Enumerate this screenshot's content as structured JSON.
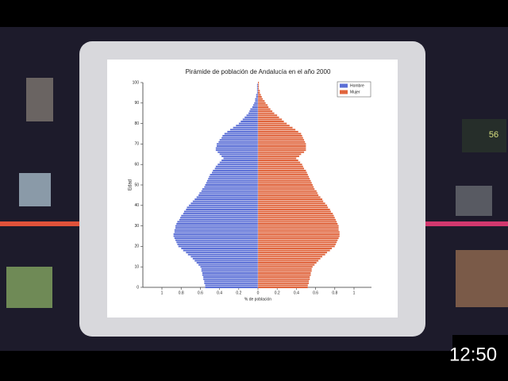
{
  "chart_data": {
    "type": "pyramid",
    "title": "Pirámide de población de Andalucía en el año 2000",
    "x_label": "% de población",
    "y_label": "Edad",
    "y": [
      0,
      1,
      2,
      3,
      4,
      5,
      6,
      7,
      8,
      9,
      10,
      11,
      12,
      13,
      14,
      15,
      16,
      17,
      18,
      19,
      20,
      21,
      22,
      23,
      24,
      25,
      26,
      27,
      28,
      29,
      30,
      31,
      32,
      33,
      34,
      35,
      36,
      37,
      38,
      39,
      40,
      41,
      42,
      43,
      44,
      45,
      46,
      47,
      48,
      49,
      50,
      51,
      52,
      53,
      54,
      55,
      56,
      57,
      58,
      59,
      60,
      61,
      62,
      63,
      64,
      65,
      66,
      67,
      68,
      69,
      70,
      71,
      72,
      73,
      74,
      75,
      76,
      77,
      78,
      79,
      80,
      81,
      82,
      83,
      84,
      85,
      86,
      87,
      88,
      89,
      90,
      91,
      92,
      93,
      94,
      95,
      96,
      97,
      98,
      99,
      100
    ],
    "series": [
      {
        "name": "Hombre",
        "color": "#5b6fd6",
        "values": [
          -0.55,
          -0.55,
          -0.56,
          -0.56,
          -0.57,
          -0.57,
          -0.58,
          -0.58,
          -0.59,
          -0.59,
          -0.6,
          -0.62,
          -0.64,
          -0.66,
          -0.68,
          -0.7,
          -0.73,
          -0.75,
          -0.78,
          -0.8,
          -0.83,
          -0.84,
          -0.85,
          -0.86,
          -0.87,
          -0.88,
          -0.88,
          -0.87,
          -0.87,
          -0.86,
          -0.86,
          -0.85,
          -0.84,
          -0.82,
          -0.81,
          -0.8,
          -0.78,
          -0.77,
          -0.75,
          -0.74,
          -0.72,
          -0.7,
          -0.68,
          -0.66,
          -0.64,
          -0.62,
          -0.61,
          -0.59,
          -0.58,
          -0.56,
          -0.55,
          -0.54,
          -0.53,
          -0.52,
          -0.51,
          -0.5,
          -0.48,
          -0.47,
          -0.45,
          -0.44,
          -0.42,
          -0.4,
          -0.38,
          -0.36,
          -0.38,
          -0.4,
          -0.42,
          -0.44,
          -0.44,
          -0.43,
          -0.43,
          -0.41,
          -0.4,
          -0.38,
          -0.37,
          -0.35,
          -0.32,
          -0.29,
          -0.26,
          -0.23,
          -0.2,
          -0.18,
          -0.16,
          -0.14,
          -0.12,
          -0.1,
          -0.09,
          -0.08,
          -0.06,
          -0.05,
          -0.04,
          -0.03,
          -0.03,
          -0.02,
          -0.02,
          -0.01,
          -0.01,
          -0.01,
          -0.01,
          -0.01,
          0
        ]
      },
      {
        "name": "Mujer",
        "color": "#e0643c",
        "values": [
          0.52,
          0.52,
          0.53,
          0.53,
          0.54,
          0.54,
          0.55,
          0.55,
          0.56,
          0.56,
          0.57,
          0.59,
          0.61,
          0.63,
          0.65,
          0.67,
          0.7,
          0.72,
          0.75,
          0.77,
          0.8,
          0.81,
          0.82,
          0.83,
          0.84,
          0.85,
          0.85,
          0.85,
          0.84,
          0.84,
          0.84,
          0.83,
          0.82,
          0.81,
          0.8,
          0.79,
          0.78,
          0.76,
          0.75,
          0.73,
          0.72,
          0.7,
          0.68,
          0.67,
          0.65,
          0.63,
          0.62,
          0.61,
          0.59,
          0.58,
          0.57,
          0.56,
          0.55,
          0.54,
          0.53,
          0.52,
          0.51,
          0.5,
          0.48,
          0.47,
          0.46,
          0.44,
          0.42,
          0.4,
          0.43,
          0.45,
          0.48,
          0.5,
          0.5,
          0.5,
          0.5,
          0.49,
          0.48,
          0.47,
          0.46,
          0.45,
          0.42,
          0.39,
          0.36,
          0.33,
          0.3,
          0.27,
          0.25,
          0.22,
          0.2,
          0.17,
          0.15,
          0.13,
          0.11,
          0.1,
          0.08,
          0.07,
          0.05,
          0.04,
          0.03,
          0.02,
          0.02,
          0.01,
          0.01,
          0.01,
          0.01
        ]
      }
    ],
    "xlim": [
      -1,
      1
    ],
    "xticks": [
      {
        "value": -1,
        "label": "1"
      },
      {
        "value": -0.8,
        "label": "0.8"
      },
      {
        "value": -0.6,
        "label": "0.6"
      },
      {
        "value": -0.4,
        "label": "0.4"
      },
      {
        "value": -0.2,
        "label": "0.2"
      },
      0,
      0.2,
      0.4,
      0.6,
      0.8,
      1
    ],
    "ylim": [
      0,
      100
    ],
    "yticks": [
      0,
      10,
      20,
      30,
      40,
      50,
      60,
      70,
      80,
      90,
      100
    ],
    "legend": "upper right"
  },
  "overlay": {
    "clock": "12:50",
    "thumbnail_text": "56"
  }
}
